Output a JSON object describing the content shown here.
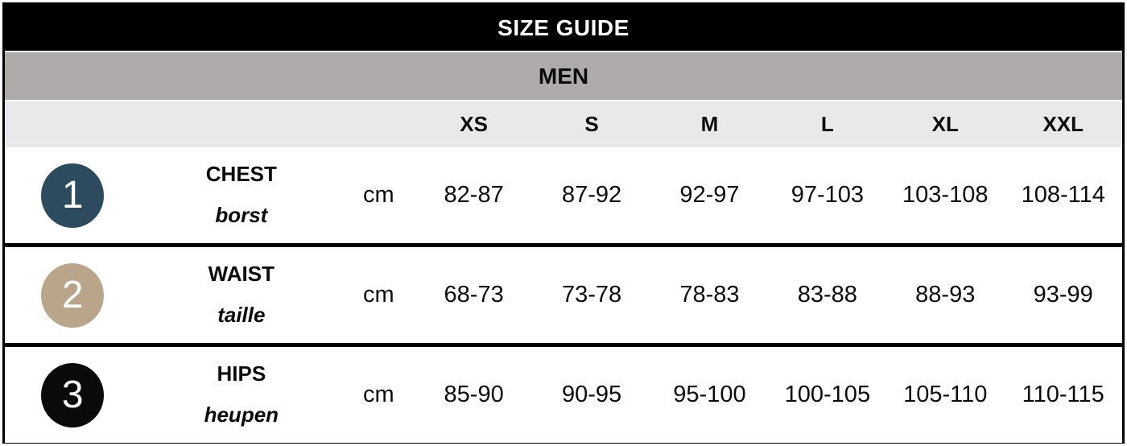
{
  "table": {
    "title": "SIZE GUIDE",
    "group": "MEN",
    "unit": "cm",
    "size_headers": [
      "XS",
      "S",
      "M",
      "L",
      "XL",
      "XXL"
    ],
    "rows": [
      {
        "num": "1",
        "circle_color": "#2d4b5e",
        "name": "CHEST",
        "translation": "borst",
        "unit": "cm",
        "values": [
          "82-87",
          "87-92",
          "92-97",
          "97-103",
          "103-108",
          "108-114"
        ]
      },
      {
        "num": "2",
        "circle_color": "#b9a58a",
        "name": "WAIST",
        "translation": "taille",
        "unit": "cm",
        "values": [
          "68-73",
          "73-78",
          "78-83",
          "83-88",
          "88-93",
          "93-99"
        ]
      },
      {
        "num": "3",
        "circle_color": "#0a0a0a",
        "name": "HIPS",
        "translation": "heupen",
        "unit": "cm",
        "values": [
          "85-90",
          "90-95",
          "95-100",
          "100-105",
          "105-110",
          "110-115"
        ]
      }
    ],
    "colors": {
      "title_bg": "#000000",
      "title_text": "#ffffff",
      "group_bg": "#b0abab",
      "sizes_bg": "#e9e8ea",
      "border": "#000000"
    }
  },
  "chart_data": {
    "type": "table",
    "title": "SIZE GUIDE",
    "subtitle": "MEN",
    "columns": [
      "",
      "",
      "unit",
      "XS",
      "S",
      "M",
      "L",
      "XL",
      "XXL"
    ],
    "rows": [
      [
        "1",
        "CHEST / borst",
        "cm",
        "82-87",
        "87-92",
        "92-97",
        "97-103",
        "103-108",
        "108-114"
      ],
      [
        "2",
        "WAIST / taille",
        "cm",
        "68-73",
        "73-78",
        "78-83",
        "83-88",
        "88-93",
        "93-99"
      ],
      [
        "3",
        "HIPS / heupen",
        "cm",
        "85-90",
        "90-95",
        "95-100",
        "100-105",
        "105-110",
        "110-115"
      ]
    ]
  }
}
